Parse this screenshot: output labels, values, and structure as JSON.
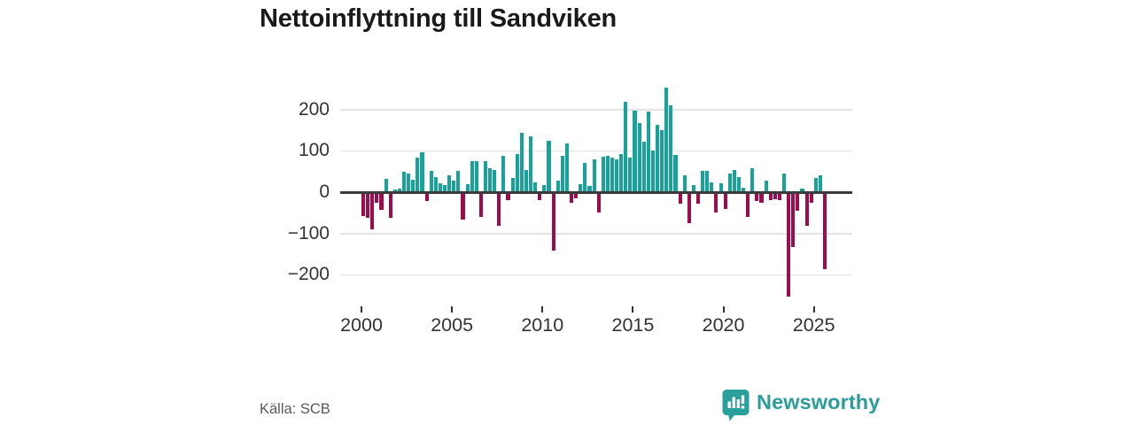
{
  "title": "Nettoinflyttning till Sandviken",
  "source": {
    "label": "Källa: SCB"
  },
  "brand": {
    "name": "Newsworthy",
    "icon": "newsworthy-speech-bubble-chart-icon",
    "color": "#2aa09d"
  },
  "colors": {
    "positive_bar": "#17a29b",
    "negative_bar": "#9e0c4d",
    "gridline": "#e4e4e4",
    "axis_line": "#3b3b3b",
    "tick_text": "#333333",
    "title_text": "#1a1a1a",
    "source_text": "#595959"
  },
  "chart_data": {
    "type": "bar",
    "title": "Nettoinflyttning till Sandviken",
    "xlabel": "",
    "ylabel": "",
    "x_unit": "quarter",
    "frequency": "quarterly",
    "start": {
      "year": 2000,
      "quarter": 1
    },
    "end": {
      "year": 2025,
      "quarter": 3
    },
    "grid": true,
    "legend": "none",
    "ylim": [
      -260,
      265
    ],
    "y_ticks": [
      200,
      100,
      0,
      -100,
      -200
    ],
    "y_tick_labels": [
      "200",
      "100",
      "0",
      "−100",
      "−200"
    ],
    "x_ticks": [
      2000,
      2005,
      2010,
      2015,
      2020,
      2025
    ],
    "series": [
      {
        "name": "Nettoinflyttning",
        "values": [
          -54,
          -58,
          -87,
          -22,
          -40,
          33,
          -58,
          7,
          9,
          50,
          46,
          30,
          83,
          96,
          -18,
          51,
          36,
          22,
          17,
          40,
          27,
          52,
          -62,
          20,
          76,
          74,
          -56,
          75,
          57,
          53,
          -77,
          88,
          -17,
          34,
          93,
          143,
          54,
          134,
          24,
          -15,
          17,
          125,
          -138,
          29,
          88,
          117,
          -22,
          -12,
          20,
          71,
          15,
          80,
          -47,
          86,
          87,
          84,
          80,
          92,
          219,
          83,
          197,
          168,
          122,
          196,
          100,
          163,
          149,
          252,
          209,
          91,
          -25,
          40,
          -71,
          17,
          -24,
          51,
          52,
          24,
          -47,
          22,
          -38,
          45,
          54,
          36,
          11,
          -57,
          57,
          -18,
          -22,
          28,
          -17,
          -13,
          -16,
          45,
          -250,
          -130,
          -42,
          9,
          -78,
          -23,
          34,
          40,
          -183
        ]
      }
    ]
  }
}
